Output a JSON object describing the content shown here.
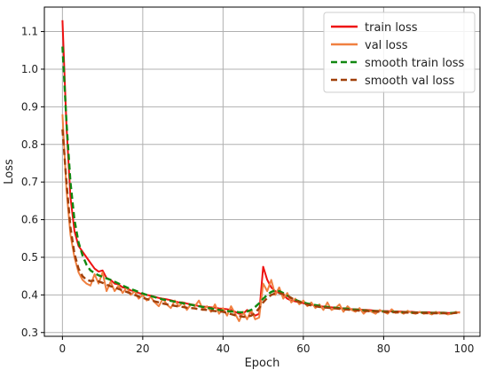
{
  "chart_data": {
    "type": "line",
    "title": "",
    "xlabel": "Epoch",
    "ylabel": "Loss",
    "xlim": [
      -4.5,
      104
    ],
    "ylim": [
      0.29,
      1.165
    ],
    "xticks": [
      0,
      20,
      40,
      60,
      80,
      100
    ],
    "yticks": [
      0.3,
      0.4,
      0.5,
      0.6,
      0.7,
      0.8,
      0.9,
      1.0,
      1.1
    ],
    "xtick_labels": [
      "0",
      "20",
      "40",
      "60",
      "80",
      "100"
    ],
    "ytick_labels": [
      "0.3",
      "0.4",
      "0.5",
      "0.6",
      "0.7",
      "0.8",
      "0.9",
      "1.0",
      "1.1"
    ],
    "grid": true,
    "legend_position": "top-right",
    "series": [
      {
        "name": "train loss",
        "color": "#ee1111",
        "dash": "solid",
        "x": [
          0,
          1,
          2,
          3,
          4,
          5,
          6,
          7,
          8,
          9,
          10,
          11,
          12,
          13,
          14,
          15,
          16,
          17,
          18,
          19,
          20,
          21,
          22,
          23,
          24,
          25,
          26,
          27,
          28,
          29,
          30,
          31,
          32,
          33,
          34,
          35,
          36,
          37,
          38,
          39,
          40,
          41,
          42,
          43,
          44,
          45,
          46,
          47,
          48,
          49,
          50,
          51,
          52,
          53,
          54,
          55,
          56,
          57,
          58,
          59,
          60,
          61,
          62,
          63,
          64,
          65,
          66,
          67,
          68,
          69,
          70,
          71,
          72,
          73,
          74,
          75,
          76,
          77,
          78,
          79,
          80,
          81,
          82,
          83,
          84,
          85,
          86,
          87,
          88,
          89,
          90,
          91,
          92,
          93,
          94,
          95,
          96,
          97,
          98,
          99
        ],
        "values": [
          1.13,
          0.85,
          0.66,
          0.57,
          0.53,
          0.515,
          0.5,
          0.485,
          0.47,
          0.462,
          0.465,
          0.445,
          0.44,
          0.43,
          0.428,
          0.42,
          0.418,
          0.412,
          0.41,
          0.405,
          0.402,
          0.4,
          0.398,
          0.395,
          0.392,
          0.39,
          0.388,
          0.386,
          0.383,
          0.38,
          0.38,
          0.377,
          0.375,
          0.373,
          0.37,
          0.369,
          0.368,
          0.367,
          0.366,
          0.364,
          0.363,
          0.362,
          0.36,
          0.355,
          0.35,
          0.35,
          0.36,
          0.352,
          0.345,
          0.35,
          0.475,
          0.44,
          0.42,
          0.41,
          0.405,
          0.4,
          0.39,
          0.385,
          0.383,
          0.38,
          0.378,
          0.375,
          0.374,
          0.372,
          0.37,
          0.369,
          0.368,
          0.367,
          0.366,
          0.365,
          0.364,
          0.363,
          0.362,
          0.362,
          0.361,
          0.36,
          0.36,
          0.359,
          0.358,
          0.358,
          0.357,
          0.357,
          0.356,
          0.356,
          0.356,
          0.355,
          0.355,
          0.355,
          0.354,
          0.354,
          0.354,
          0.354,
          0.353,
          0.353,
          0.353,
          0.353,
          0.352,
          0.352,
          0.353,
          0.354
        ]
      },
      {
        "name": "val loss",
        "color": "#f08040",
        "dash": "solid",
        "x": [
          0,
          1,
          2,
          3,
          4,
          5,
          6,
          7,
          8,
          9,
          10,
          11,
          12,
          13,
          14,
          15,
          16,
          17,
          18,
          19,
          20,
          21,
          22,
          23,
          24,
          25,
          26,
          27,
          28,
          29,
          30,
          31,
          32,
          33,
          34,
          35,
          36,
          37,
          38,
          39,
          40,
          41,
          42,
          43,
          44,
          45,
          46,
          47,
          48,
          49,
          50,
          51,
          52,
          53,
          54,
          55,
          56,
          57,
          58,
          59,
          60,
          61,
          62,
          63,
          64,
          65,
          66,
          67,
          68,
          69,
          70,
          71,
          72,
          73,
          74,
          75,
          76,
          77,
          78,
          79,
          80,
          81,
          82,
          83,
          84,
          85,
          86,
          87,
          88,
          89,
          90,
          91,
          92,
          93,
          94,
          95,
          96,
          97,
          98,
          99
        ],
        "values": [
          0.88,
          0.68,
          0.56,
          0.5,
          0.46,
          0.44,
          0.43,
          0.425,
          0.455,
          0.43,
          0.46,
          0.41,
          0.435,
          0.41,
          0.425,
          0.405,
          0.42,
          0.4,
          0.41,
          0.39,
          0.4,
          0.385,
          0.395,
          0.38,
          0.37,
          0.39,
          0.375,
          0.365,
          0.385,
          0.37,
          0.38,
          0.36,
          0.375,
          0.37,
          0.385,
          0.36,
          0.37,
          0.355,
          0.375,
          0.35,
          0.365,
          0.345,
          0.37,
          0.35,
          0.33,
          0.355,
          0.335,
          0.36,
          0.335,
          0.34,
          0.43,
          0.41,
          0.44,
          0.4,
          0.42,
          0.39,
          0.405,
          0.38,
          0.39,
          0.375,
          0.385,
          0.37,
          0.38,
          0.365,
          0.375,
          0.36,
          0.38,
          0.36,
          0.365,
          0.375,
          0.355,
          0.37,
          0.36,
          0.355,
          0.365,
          0.35,
          0.36,
          0.355,
          0.35,
          0.36,
          0.355,
          0.35,
          0.362,
          0.352,
          0.355,
          0.35,
          0.358,
          0.352,
          0.35,
          0.355,
          0.35,
          0.352,
          0.348,
          0.355,
          0.35,
          0.352,
          0.348,
          0.35,
          0.355,
          0.352
        ]
      },
      {
        "name": "smooth train loss",
        "color": "#118811",
        "dash": "dashed",
        "x": [
          0,
          1,
          2,
          3,
          4,
          5,
          6,
          7,
          8,
          9,
          10,
          11,
          12,
          13,
          14,
          15,
          16,
          17,
          18,
          19,
          20,
          21,
          22,
          23,
          24,
          25,
          26,
          27,
          28,
          29,
          30,
          31,
          32,
          33,
          34,
          35,
          36,
          37,
          38,
          39,
          40,
          41,
          42,
          43,
          44,
          45,
          46,
          47,
          48,
          49,
          50,
          51,
          52,
          53,
          54,
          55,
          56,
          57,
          58,
          59,
          60,
          61,
          62,
          63,
          64,
          65,
          66,
          67,
          68,
          69,
          70,
          71,
          72,
          73,
          74,
          75,
          76,
          77,
          78,
          79,
          80,
          81,
          82,
          83,
          84,
          85,
          86,
          87,
          88,
          89,
          90,
          91,
          92,
          93,
          94,
          95,
          96,
          97,
          98,
          99
        ],
        "values": [
          1.06,
          0.86,
          0.7,
          0.6,
          0.54,
          0.505,
          0.48,
          0.465,
          0.458,
          0.452,
          0.448,
          0.444,
          0.44,
          0.435,
          0.43,
          0.425,
          0.42,
          0.416,
          0.412,
          0.408,
          0.404,
          0.4,
          0.397,
          0.394,
          0.391,
          0.388,
          0.386,
          0.384,
          0.382,
          0.38,
          0.378,
          0.376,
          0.374,
          0.372,
          0.37,
          0.368,
          0.366,
          0.364,
          0.362,
          0.36,
          0.358,
          0.357,
          0.356,
          0.355,
          0.354,
          0.354,
          0.356,
          0.36,
          0.368,
          0.378,
          0.39,
          0.4,
          0.408,
          0.412,
          0.41,
          0.405,
          0.398,
          0.392,
          0.387,
          0.383,
          0.38,
          0.377,
          0.375,
          0.373,
          0.371,
          0.369,
          0.368,
          0.367,
          0.366,
          0.365,
          0.364,
          0.363,
          0.362,
          0.361,
          0.36,
          0.359,
          0.358,
          0.357,
          0.357,
          0.356,
          0.356,
          0.355,
          0.355,
          0.355,
          0.354,
          0.354,
          0.354,
          0.353,
          0.353,
          0.353,
          0.353,
          0.353,
          0.352,
          0.352,
          0.352,
          0.352,
          0.352,
          0.352,
          0.353,
          0.355
        ]
      },
      {
        "name": "smooth val loss",
        "color": "#a0400a",
        "dash": "dashed",
        "x": [
          0,
          1,
          2,
          3,
          4,
          5,
          6,
          7,
          8,
          9,
          10,
          11,
          12,
          13,
          14,
          15,
          16,
          17,
          18,
          19,
          20,
          21,
          22,
          23,
          24,
          25,
          26,
          27,
          28,
          29,
          30,
          31,
          32,
          33,
          34,
          35,
          36,
          37,
          38,
          39,
          40,
          41,
          42,
          43,
          44,
          45,
          46,
          47,
          48,
          49,
          50,
          51,
          52,
          53,
          54,
          55,
          56,
          57,
          58,
          59,
          60,
          61,
          62,
          63,
          64,
          65,
          66,
          67,
          68,
          69,
          70,
          71,
          72,
          73,
          74,
          75,
          76,
          77,
          78,
          79,
          80,
          81,
          82,
          83,
          84,
          85,
          86,
          87,
          88,
          89,
          90,
          91,
          92,
          93,
          94,
          95,
          96,
          97,
          98,
          99
        ],
        "values": [
          0.84,
          0.7,
          0.58,
          0.51,
          0.47,
          0.45,
          0.44,
          0.437,
          0.438,
          0.436,
          0.432,
          0.427,
          0.423,
          0.42,
          0.416,
          0.412,
          0.408,
          0.404,
          0.4,
          0.396,
          0.392,
          0.389,
          0.386,
          0.383,
          0.38,
          0.377,
          0.375,
          0.373,
          0.371,
          0.369,
          0.368,
          0.366,
          0.365,
          0.364,
          0.362,
          0.361,
          0.36,
          0.358,
          0.357,
          0.356,
          0.355,
          0.352,
          0.349,
          0.346,
          0.344,
          0.342,
          0.342,
          0.345,
          0.352,
          0.365,
          0.38,
          0.392,
          0.4,
          0.404,
          0.405,
          0.402,
          0.398,
          0.392,
          0.386,
          0.381,
          0.377,
          0.374,
          0.372,
          0.37,
          0.368,
          0.367,
          0.366,
          0.365,
          0.364,
          0.363,
          0.362,
          0.361,
          0.36,
          0.359,
          0.358,
          0.357,
          0.357,
          0.356,
          0.356,
          0.355,
          0.355,
          0.354,
          0.354,
          0.354,
          0.353,
          0.353,
          0.353,
          0.352,
          0.352,
          0.352,
          0.352,
          0.351,
          0.351,
          0.351,
          0.351,
          0.351,
          0.351,
          0.351,
          0.352,
          0.353
        ]
      }
    ]
  }
}
